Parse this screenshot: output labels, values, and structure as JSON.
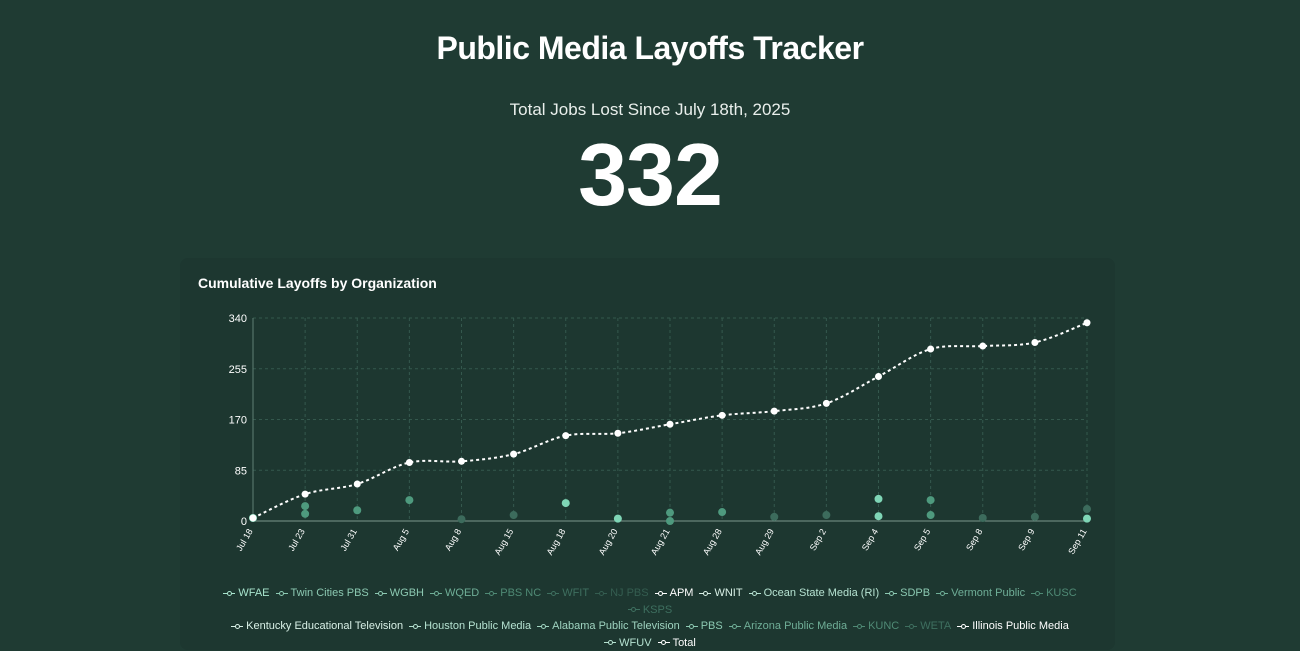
{
  "header": {
    "title": "Public Media Layoffs Tracker",
    "subtitle": "Total Jobs Lost Since July 18th, 2025",
    "total": "332"
  },
  "chart_title": "Cumulative Layoffs by Organization",
  "colors": {
    "background": "#1f3b33",
    "card": "#1d3730",
    "grid": "#34584d",
    "total_line": "#ffffff",
    "org_points_bright": "#7fd6b6",
    "org_points_mid": "#4e9a7e",
    "org_points_dim": "#3c6b5c"
  },
  "chart_data": {
    "type": "line",
    "categories": [
      "Jul 18",
      "Jul 23",
      "Jul 31",
      "Aug 5",
      "Aug 8",
      "Aug 15",
      "Aug 18",
      "Aug 20",
      "Aug 21",
      "Aug 28",
      "Aug 29",
      "Sep 2",
      "Sep 4",
      "Sep 5",
      "Sep 8",
      "Sep 9",
      "Sep 11"
    ],
    "ylim": [
      0,
      340
    ],
    "yticks": [
      0,
      85,
      170,
      255,
      340
    ],
    "grid": true,
    "legend_position": "bottom",
    "series": [
      {
        "name": "Total",
        "style": "dashed",
        "values": [
          5,
          45,
          62,
          98,
          100,
          112,
          143,
          147,
          162,
          177,
          184,
          197,
          242,
          288,
          293,
          299,
          332
        ]
      }
    ],
    "points": [
      {
        "x": "Jul 18",
        "y": 5,
        "tone": "bright"
      },
      {
        "x": "Jul 23",
        "y": 25,
        "tone": "mid"
      },
      {
        "x": "Jul 23",
        "y": 12,
        "tone": "mid"
      },
      {
        "x": "Jul 31",
        "y": 18,
        "tone": "mid"
      },
      {
        "x": "Aug 5",
        "y": 35,
        "tone": "mid"
      },
      {
        "x": "Aug 8",
        "y": 3,
        "tone": "dim"
      },
      {
        "x": "Aug 15",
        "y": 10,
        "tone": "dim"
      },
      {
        "x": "Aug 18",
        "y": 30,
        "tone": "bright"
      },
      {
        "x": "Aug 20",
        "y": 4,
        "tone": "bright"
      },
      {
        "x": "Aug 21",
        "y": 14,
        "tone": "mid"
      },
      {
        "x": "Aug 21",
        "y": 0,
        "tone": "mid"
      },
      {
        "x": "Aug 28",
        "y": 15,
        "tone": "mid"
      },
      {
        "x": "Aug 29",
        "y": 7,
        "tone": "dim"
      },
      {
        "x": "Sep 2",
        "y": 10,
        "tone": "dim"
      },
      {
        "x": "Sep 4",
        "y": 37,
        "tone": "bright"
      },
      {
        "x": "Sep 4",
        "y": 8,
        "tone": "bright"
      },
      {
        "x": "Sep 5",
        "y": 35,
        "tone": "mid"
      },
      {
        "x": "Sep 5",
        "y": 10,
        "tone": "mid"
      },
      {
        "x": "Sep 8",
        "y": 5,
        "tone": "dim"
      },
      {
        "x": "Sep 9",
        "y": 7,
        "tone": "dim"
      },
      {
        "x": "Sep 11",
        "y": 20,
        "tone": "dim"
      },
      {
        "x": "Sep 11",
        "y": 4,
        "tone": "bright"
      }
    ],
    "legend": [
      {
        "label": "WFAE",
        "color": "#a8e4cd"
      },
      {
        "label": "Twin Cities PBS",
        "color": "#8cc9b2"
      },
      {
        "label": "WGBH",
        "color": "#8cc9b2"
      },
      {
        "label": "WQED",
        "color": "#6fae97"
      },
      {
        "label": "PBS NC",
        "color": "#4f8a75"
      },
      {
        "label": "WFIT",
        "color": "#3e6f5f"
      },
      {
        "label": "NJ PBS",
        "color": "#345d50"
      },
      {
        "label": "APM",
        "color": "#ffffff"
      },
      {
        "label": "WNIT",
        "color": "#d8f0e6"
      },
      {
        "label": "Ocean State Media (RI)",
        "color": "#b5e2d1"
      },
      {
        "label": "SDPB",
        "color": "#8cc9b2"
      },
      {
        "label": "Vermont Public",
        "color": "#6fae97"
      },
      {
        "label": "KUSC",
        "color": "#4f8a75"
      },
      {
        "label": "KSPS",
        "color": "#3e6f5f"
      },
      {
        "label": "Kentucky Educational Television",
        "color": "#d8f0e6"
      },
      {
        "label": "Houston Public Media",
        "color": "#b5e2d1"
      },
      {
        "label": "Alabama Public Television",
        "color": "#9fd4c0"
      },
      {
        "label": "PBS",
        "color": "#8cc9b2"
      },
      {
        "label": "Arizona Public Media",
        "color": "#6fae97"
      },
      {
        "label": "KUNC",
        "color": "#4f8a75"
      },
      {
        "label": "WETA",
        "color": "#3e6f5f"
      },
      {
        "label": "Illinois Public Media",
        "color": "#ffffff"
      },
      {
        "label": "WFUV",
        "color": "#b5e2d1"
      },
      {
        "label": "Total",
        "color": "#ffffff"
      }
    ]
  }
}
